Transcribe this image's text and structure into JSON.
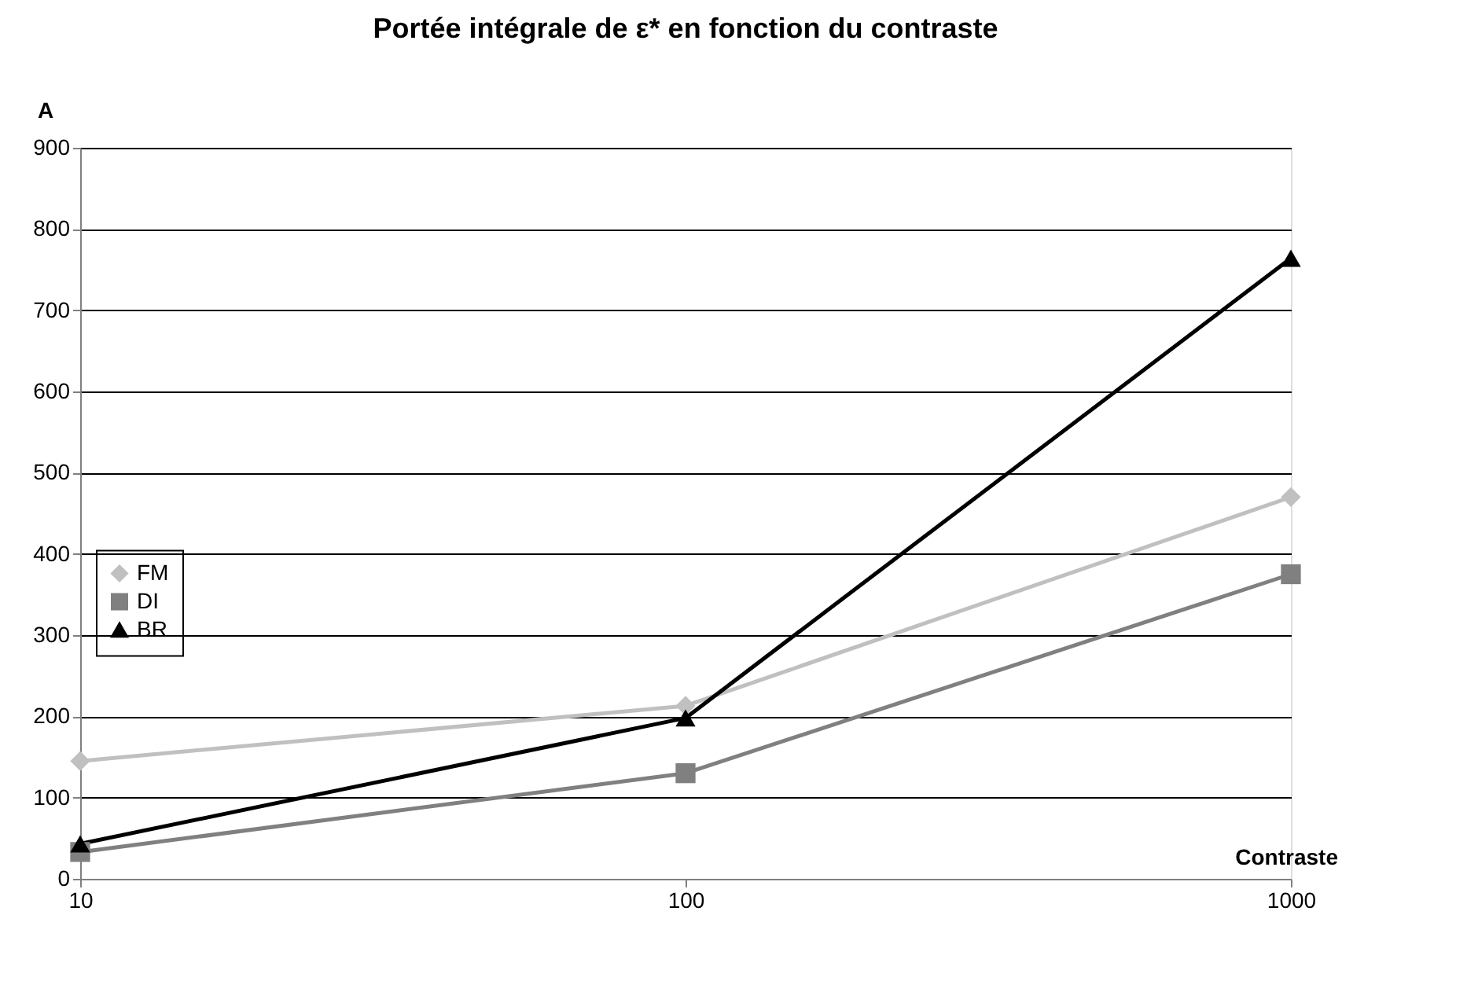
{
  "chart_data": {
    "type": "line",
    "title": "Portée intégrale de ε* en fonction du contraste",
    "xlabel": "Contraste",
    "ylabel": "A",
    "x": [
      10,
      100,
      1000
    ],
    "log": "x",
    "xlim": [
      10,
      1000
    ],
    "xticks": [
      10,
      100,
      1000
    ],
    "ylim": [
      0,
      900
    ],
    "yticks": [
      0,
      100,
      200,
      300,
      400,
      500,
      600,
      700,
      800,
      900
    ],
    "grid": "y",
    "legend": "left",
    "series": [
      {
        "name": "FM",
        "color": "#c0c0c0",
        "marker": "diamond",
        "values": [
          145,
          213,
          470
        ]
      },
      {
        "name": "DI",
        "color": "#808080",
        "marker": "square",
        "values": [
          33,
          130,
          375
        ]
      },
      {
        "name": "BR",
        "color": "#000000",
        "marker": "triangle",
        "values": [
          43,
          198,
          764
        ]
      }
    ]
  }
}
